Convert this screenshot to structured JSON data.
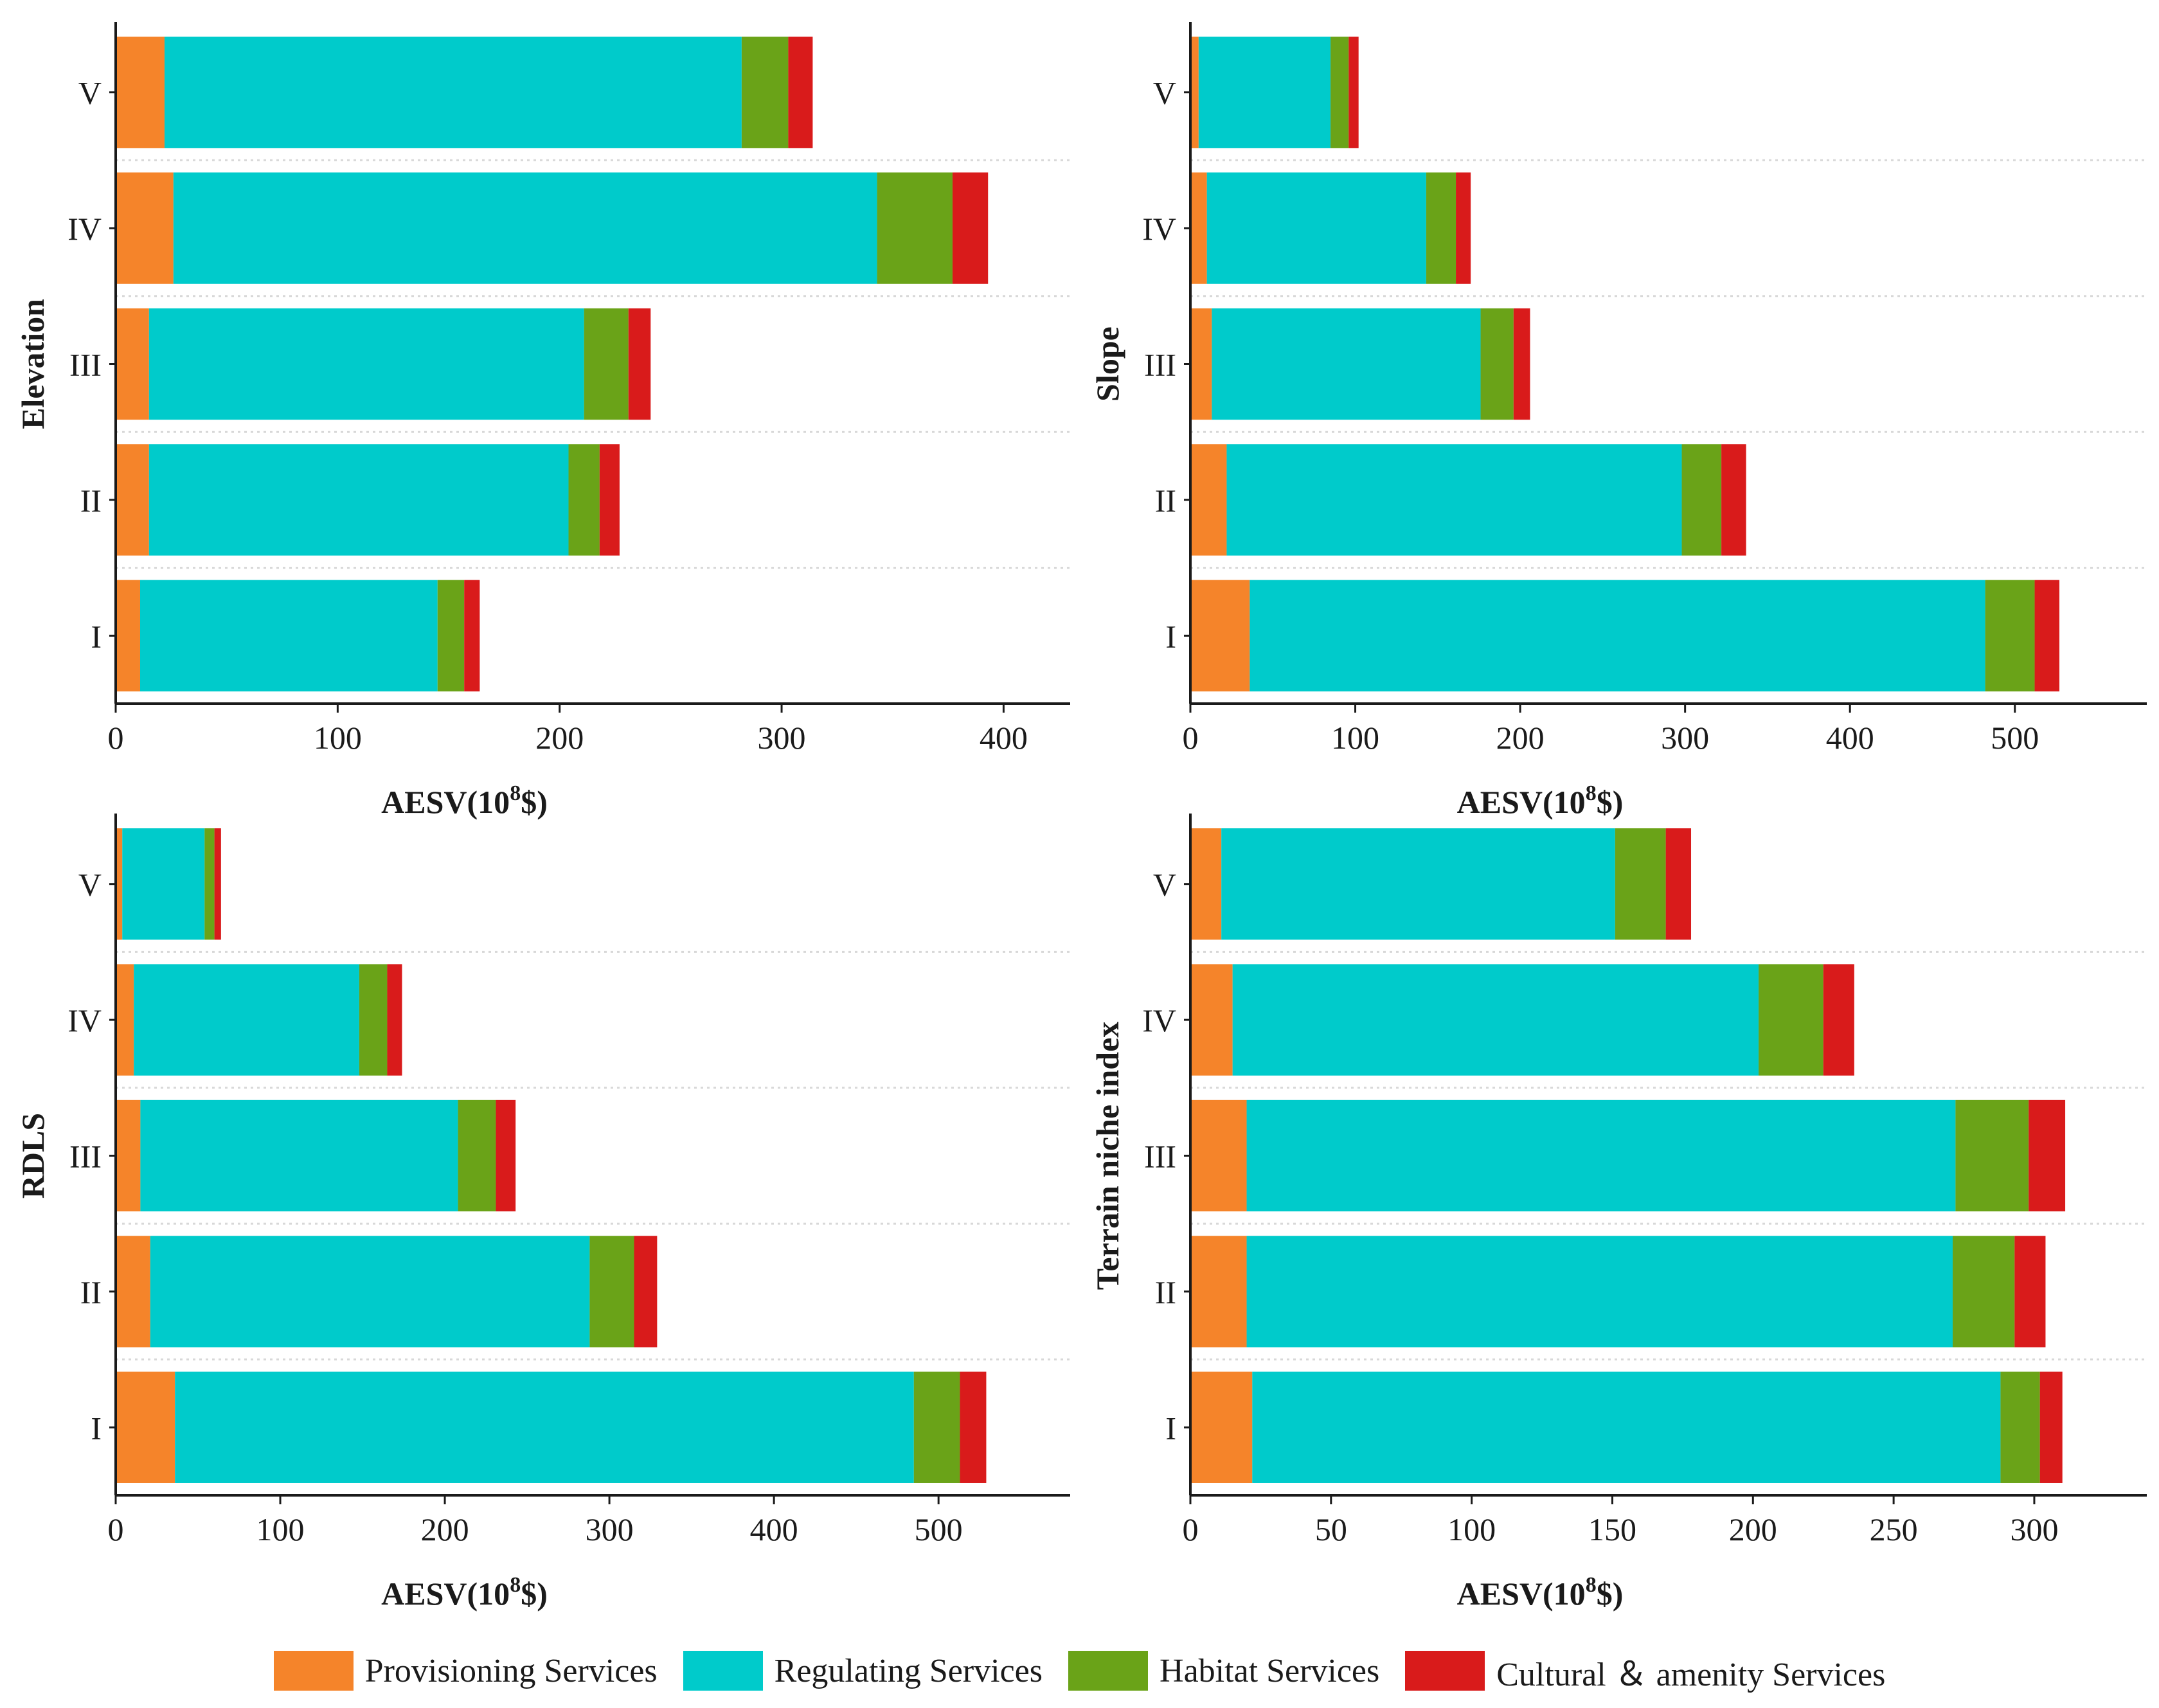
{
  "colors": {
    "provisioning": "#f5842a",
    "regulating": "#00cbcb",
    "habitat": "#6aa318",
    "cultural": "#d91b1b",
    "axis": "#1a1a1a",
    "grid": "#d8d8d8"
  },
  "legend": [
    {
      "label": "Provisioning Services",
      "color_key": "provisioning"
    },
    {
      "label": "Regulating Services",
      "color_key": "regulating"
    },
    {
      "label": "Habitat Services",
      "color_key": "habitat"
    },
    {
      "label": "Cultural ＆ amenity Services",
      "color_key": "cultural"
    }
  ],
  "chart_data": [
    {
      "type": "bar",
      "orientation": "horizontal",
      "stacked": true,
      "ylabel": "Elevation",
      "xlabel": "AESV(10^8$)",
      "xlabel_base": "AESV(10",
      "xlabel_sup": "8",
      "xlabel_tail": "$)",
      "categories": [
        "V",
        "IV",
        "III",
        "II",
        "I"
      ],
      "xlim": [
        0,
        430
      ],
      "xticks": [
        0,
        100,
        200,
        300,
        400
      ],
      "series": [
        {
          "name": "Provisioning Services",
          "color_key": "provisioning",
          "values": [
            22,
            26,
            15,
            15,
            11
          ]
        },
        {
          "name": "Regulating Services",
          "color_key": "regulating",
          "values": [
            260,
            317,
            196,
            189,
            134
          ]
        },
        {
          "name": "Habitat Services",
          "color_key": "habitat",
          "values": [
            21,
            34,
            20,
            14,
            12
          ]
        },
        {
          "name": "Cultural & amenity Services",
          "color_key": "cultural",
          "values": [
            11,
            16,
            10,
            9,
            7
          ]
        }
      ]
    },
    {
      "type": "bar",
      "orientation": "horizontal",
      "stacked": true,
      "ylabel": "Slope",
      "xlabel": "AESV(10^8$)",
      "xlabel_base": "AESV(10",
      "xlabel_sup": "8",
      "xlabel_tail": "$)",
      "categories": [
        "V",
        "IV",
        "III",
        "II",
        "I"
      ],
      "xlim": [
        0,
        580
      ],
      "xticks": [
        0,
        100,
        200,
        300,
        400,
        500
      ],
      "series": [
        {
          "name": "Provisioning Services",
          "color_key": "provisioning",
          "values": [
            5,
            10,
            13,
            22,
            36
          ]
        },
        {
          "name": "Regulating Services",
          "color_key": "regulating",
          "values": [
            80,
            133,
            163,
            276,
            446
          ]
        },
        {
          "name": "Habitat Services",
          "color_key": "habitat",
          "values": [
            11,
            18,
            20,
            24,
            30
          ]
        },
        {
          "name": "Cultural & amenity Services",
          "color_key": "cultural",
          "values": [
            6,
            9,
            10,
            15,
            15
          ]
        }
      ]
    },
    {
      "type": "bar",
      "orientation": "horizontal",
      "stacked": true,
      "ylabel": "RDLS",
      "xlabel": "AESV(10^8$)",
      "xlabel_base": "AESV(10",
      "xlabel_sup": "8",
      "xlabel_tail": "$)",
      "categories": [
        "V",
        "IV",
        "III",
        "II",
        "I"
      ],
      "xlim": [
        0,
        580
      ],
      "xticks": [
        0,
        100,
        200,
        300,
        400,
        500
      ],
      "series": [
        {
          "name": "Provisioning Services",
          "color_key": "provisioning",
          "values": [
            4,
            11,
            15,
            21,
            36
          ]
        },
        {
          "name": "Regulating Services",
          "color_key": "regulating",
          "values": [
            50,
            137,
            193,
            267,
            449
          ]
        },
        {
          "name": "Habitat Services",
          "color_key": "habitat",
          "values": [
            6,
            17,
            23,
            27,
            28
          ]
        },
        {
          "name": "Cultural & amenity Services",
          "color_key": "cultural",
          "values": [
            4,
            9,
            12,
            14,
            16
          ]
        }
      ]
    },
    {
      "type": "bar",
      "orientation": "horizontal",
      "stacked": true,
      "ylabel": "Terrain niche index",
      "xlabel": "AESV(10^8$)",
      "xlabel_base": "AESV(10",
      "xlabel_sup": "8",
      "xlabel_tail": "$)",
      "categories": [
        "V",
        "IV",
        "III",
        "II",
        "I"
      ],
      "xlim": [
        0,
        340
      ],
      "xticks": [
        0,
        50,
        100,
        150,
        200,
        250,
        300
      ],
      "series": [
        {
          "name": "Provisioning Services",
          "color_key": "provisioning",
          "values": [
            11,
            15,
            20,
            20,
            22
          ]
        },
        {
          "name": "Regulating Services",
          "color_key": "regulating",
          "values": [
            140,
            187,
            252,
            251,
            266
          ]
        },
        {
          "name": "Habitat Services",
          "color_key": "habitat",
          "values": [
            18,
            23,
            26,
            22,
            14
          ]
        },
        {
          "name": "Cultural & amenity Services",
          "color_key": "cultural",
          "values": [
            9,
            11,
            13,
            11,
            8
          ]
        }
      ]
    }
  ]
}
